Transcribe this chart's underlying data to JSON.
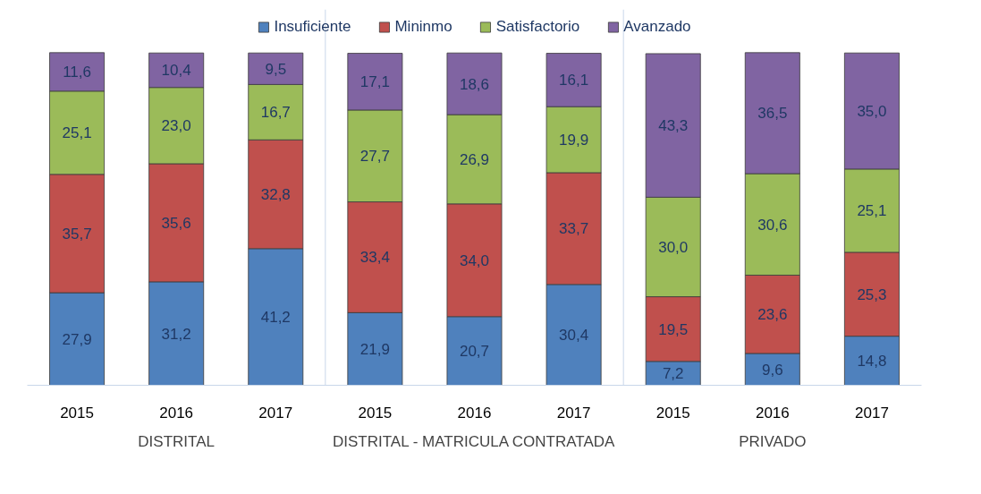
{
  "chart_data": {
    "type": "bar",
    "stacked": true,
    "legend": "top",
    "grid": false,
    "tick_labels": "x",
    "categories": [
      "2015",
      "2016",
      "2017",
      "2015",
      "2016",
      "2017",
      "2015",
      "2016",
      "2017"
    ],
    "series": [
      {
        "name": "Insuficiente",
        "color": "#4f81bd",
        "values": [
          27.9,
          31.2,
          41.2,
          21.9,
          20.7,
          30.4,
          7.2,
          9.6,
          14.8
        ],
        "value_labels": [
          "27,9",
          "31,2",
          "41,2",
          "21,9",
          "20,7",
          "30,4",
          "7,2",
          "9,6",
          "14,8"
        ]
      },
      {
        "name": "Mininmo",
        "color": "#c0504d",
        "values": [
          35.7,
          35.6,
          32.8,
          33.4,
          34.0,
          33.7,
          19.5,
          23.6,
          25.3
        ],
        "value_labels": [
          "35,7",
          "35,6",
          "32,8",
          "33,4",
          "34,0",
          "33,7",
          "19,5",
          "23,6",
          "25,3"
        ]
      },
      {
        "name": "Satisfactorio",
        "color": "#9bbb59",
        "values": [
          25.1,
          23.0,
          16.7,
          27.7,
          26.9,
          19.9,
          30.0,
          30.6,
          25.1
        ],
        "value_labels": [
          "25,1",
          "23,0",
          "16,7",
          "27,7",
          "26,9",
          "19,9",
          "30,0",
          "30,6",
          "25,1"
        ]
      },
      {
        "name": "Avanzado",
        "color": "#8064a2",
        "values": [
          11.6,
          10.4,
          9.5,
          17.1,
          18.6,
          16.1,
          43.3,
          36.5,
          35.0
        ],
        "value_labels": [
          "11,6",
          "10,4",
          "9,5",
          "17,1",
          "18,6",
          "16,1",
          "43,3",
          "36,5",
          "35,0"
        ]
      }
    ],
    "annotations": [
      "DISTRITAL",
      "DISTRITAL - MATRICULA CONTRATADA",
      "PRIVADO"
    ]
  }
}
